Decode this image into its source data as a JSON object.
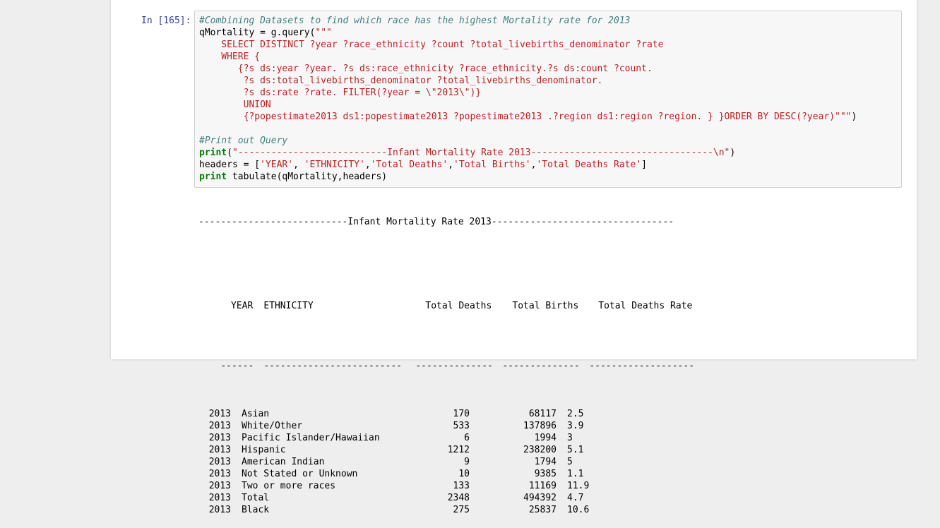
{
  "cell": {
    "prompt": "In [165]:",
    "code": [
      {
        "parts": [
          {
            "t": "cm",
            "v": "#Combining Datasets to find which race has the highest Mortality rate for 2013"
          }
        ]
      },
      {
        "parts": [
          {
            "t": "plain",
            "v": "qMortality = g.query("
          },
          {
            "t": "str",
            "v": "\"\"\""
          }
        ]
      },
      {
        "parts": [
          {
            "t": "str",
            "v": "    SELECT DISTINCT ?year ?race_ethnicity ?count ?total_livebirths_denominator ?rate"
          }
        ]
      },
      {
        "parts": [
          {
            "t": "str",
            "v": "    WHERE {"
          }
        ]
      },
      {
        "parts": [
          {
            "t": "str",
            "v": "       {?s ds:year ?year. ?s ds:race_ethnicity ?race_ethnicity.?s ds:count ?count."
          }
        ]
      },
      {
        "parts": [
          {
            "t": "str",
            "v": "        ?s ds:total_livebirths_denominator ?total_livebirths_denominator."
          }
        ]
      },
      {
        "parts": [
          {
            "t": "str",
            "v": "        ?s ds:rate ?rate. FILTER(?year = \\\"2013\\\")}"
          }
        ]
      },
      {
        "parts": [
          {
            "t": "str",
            "v": "        UNION"
          }
        ]
      },
      {
        "parts": [
          {
            "t": "str",
            "v": "        {?popestimate2013 ds1:popestimate2013 ?popestimate2013 .?region ds1:region ?region. } }ORDER BY DESC(?year)\"\"\""
          },
          {
            "t": "plain",
            "v": ")"
          }
        ]
      },
      {
        "parts": [
          {
            "t": "plain",
            "v": ""
          }
        ]
      },
      {
        "parts": [
          {
            "t": "cm",
            "v": "#Print out Query"
          }
        ]
      },
      {
        "parts": [
          {
            "t": "kw",
            "v": "print"
          },
          {
            "t": "plain",
            "v": "("
          },
          {
            "t": "str",
            "v": "\"---------------------------Infant Mortality Rate 2013---------------------------------\\n\""
          },
          {
            "t": "plain",
            "v": ")"
          }
        ]
      },
      {
        "parts": [
          {
            "t": "plain",
            "v": "headers = ["
          },
          {
            "t": "str",
            "v": "'YEAR'"
          },
          {
            "t": "plain",
            "v": ", "
          },
          {
            "t": "str",
            "v": "'ETHNICITY'"
          },
          {
            "t": "plain",
            "v": ","
          },
          {
            "t": "str",
            "v": "'Total Deaths'"
          },
          {
            "t": "plain",
            "v": ","
          },
          {
            "t": "str",
            "v": "'Total Births'"
          },
          {
            "t": "plain",
            "v": ","
          },
          {
            "t": "str",
            "v": "'Total Deaths Rate'"
          },
          {
            "t": "plain",
            "v": "]"
          }
        ]
      },
      {
        "parts": [
          {
            "t": "kw",
            "v": "print"
          },
          {
            "t": "plain",
            "v": " tabulate(qMortality,headers)"
          }
        ]
      }
    ]
  },
  "output": {
    "title_line": "---------------------------Infant Mortality Rate 2013---------------------------------",
    "headers": [
      "YEAR",
      "ETHNICITY",
      "Total Deaths",
      "Total Births",
      "Total Deaths Rate"
    ],
    "separator": [
      "------",
      "-------------------------",
      "--------------",
      "--------------",
      "-------------------"
    ],
    "rows": [
      [
        "2013",
        "Asian",
        "170",
        "68117",
        "2.5"
      ],
      [
        "2013",
        "White/Other",
        "533",
        "137896",
        "3.9"
      ],
      [
        "2013",
        "Pacific Islander/Hawaiian",
        "6",
        "1994",
        "3"
      ],
      [
        "2013",
        "Hispanic",
        "1212",
        "238200",
        "5.1"
      ],
      [
        "2013",
        "American Indian",
        "9",
        "1794",
        "5"
      ],
      [
        "2013",
        "Not Stated or Unknown",
        "10",
        "9385",
        "1.1"
      ],
      [
        "2013",
        "Two or more races",
        "133",
        "11169",
        "11.9"
      ],
      [
        "2013",
        "Total",
        "2348",
        "494392",
        "4.7"
      ],
      [
        "2013",
        "Black",
        "275",
        "25837",
        "10.6"
      ]
    ]
  }
}
